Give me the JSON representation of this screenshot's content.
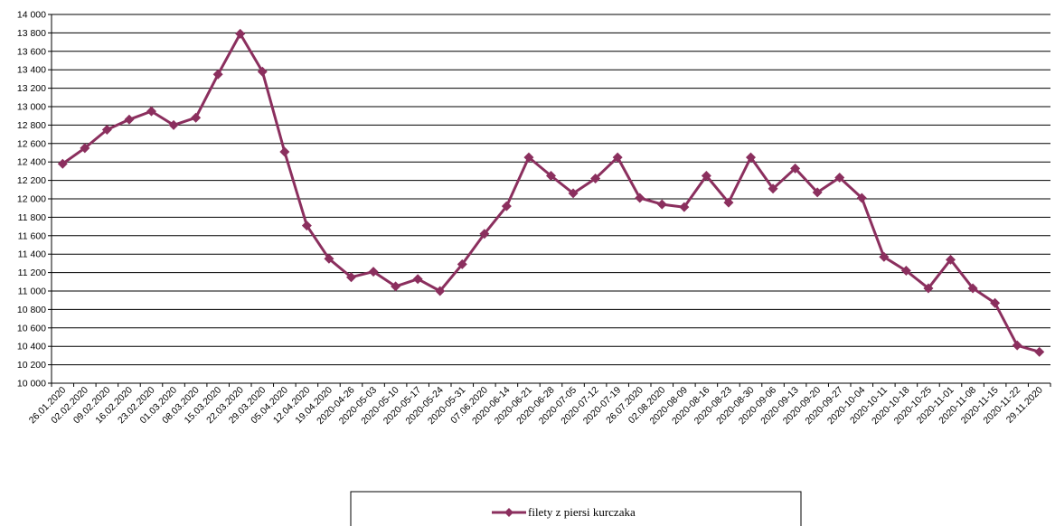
{
  "chart_data": {
    "type": "line",
    "title": "",
    "xlabel": "",
    "ylabel": "",
    "ylim": [
      10000,
      14000
    ],
    "ytick_step": 200,
    "grid": true,
    "legend_position": "bottom-center",
    "categories": [
      "26.01.2020",
      "02.02.2020",
      "09.02.2020",
      "16.02.2020",
      "23.02.2020",
      "01.03.2020",
      "08.03.2020",
      "15.03.2020",
      "22.03.2020",
      "29.03.2020",
      "05.04.2020",
      "12.04.2020",
      "19.04.2020",
      "2020-04-26",
      "2020-05-03",
      "2020-05-10",
      "2020-05-17",
      "2020-05-24",
      "2020-05-31",
      "07.06.2020",
      "2020-06-14",
      "2020-06-21",
      "2020-06-28",
      "2020-07-05",
      "2020-07-12",
      "2020-07-19",
      "26.07.2020",
      "02.08.2020",
      "2020-08-09",
      "2020-08-16",
      "2020-08-23",
      "2020-08-30",
      "2020-09-06",
      "2020-09-13",
      "2020-09-20",
      "2020-09-27",
      "2020-10-04",
      "2020-10-11",
      "2020-10-18",
      "2020-10-25",
      "2020-11-01",
      "2020-11-08",
      "2020-11-15",
      "2020-11-22",
      "29.11.2020"
    ],
    "series": [
      {
        "name": "filety z piersi kurczaka",
        "color": "#8B2F5E",
        "values": [
          12380,
          12550,
          12750,
          12860,
          12950,
          12800,
          12880,
          13350,
          13790,
          13380,
          12510,
          11710,
          11350,
          11150,
          11210,
          11050,
          11130,
          11000,
          11290,
          11620,
          11920,
          12450,
          12250,
          12060,
          12220,
          12450,
          12010,
          11940,
          11910,
          12250,
          11960,
          12450,
          12110,
          12330,
          12070,
          12230,
          12010,
          11370,
          11220,
          11030,
          11340,
          11030,
          10870,
          10410,
          10340
        ]
      }
    ]
  }
}
